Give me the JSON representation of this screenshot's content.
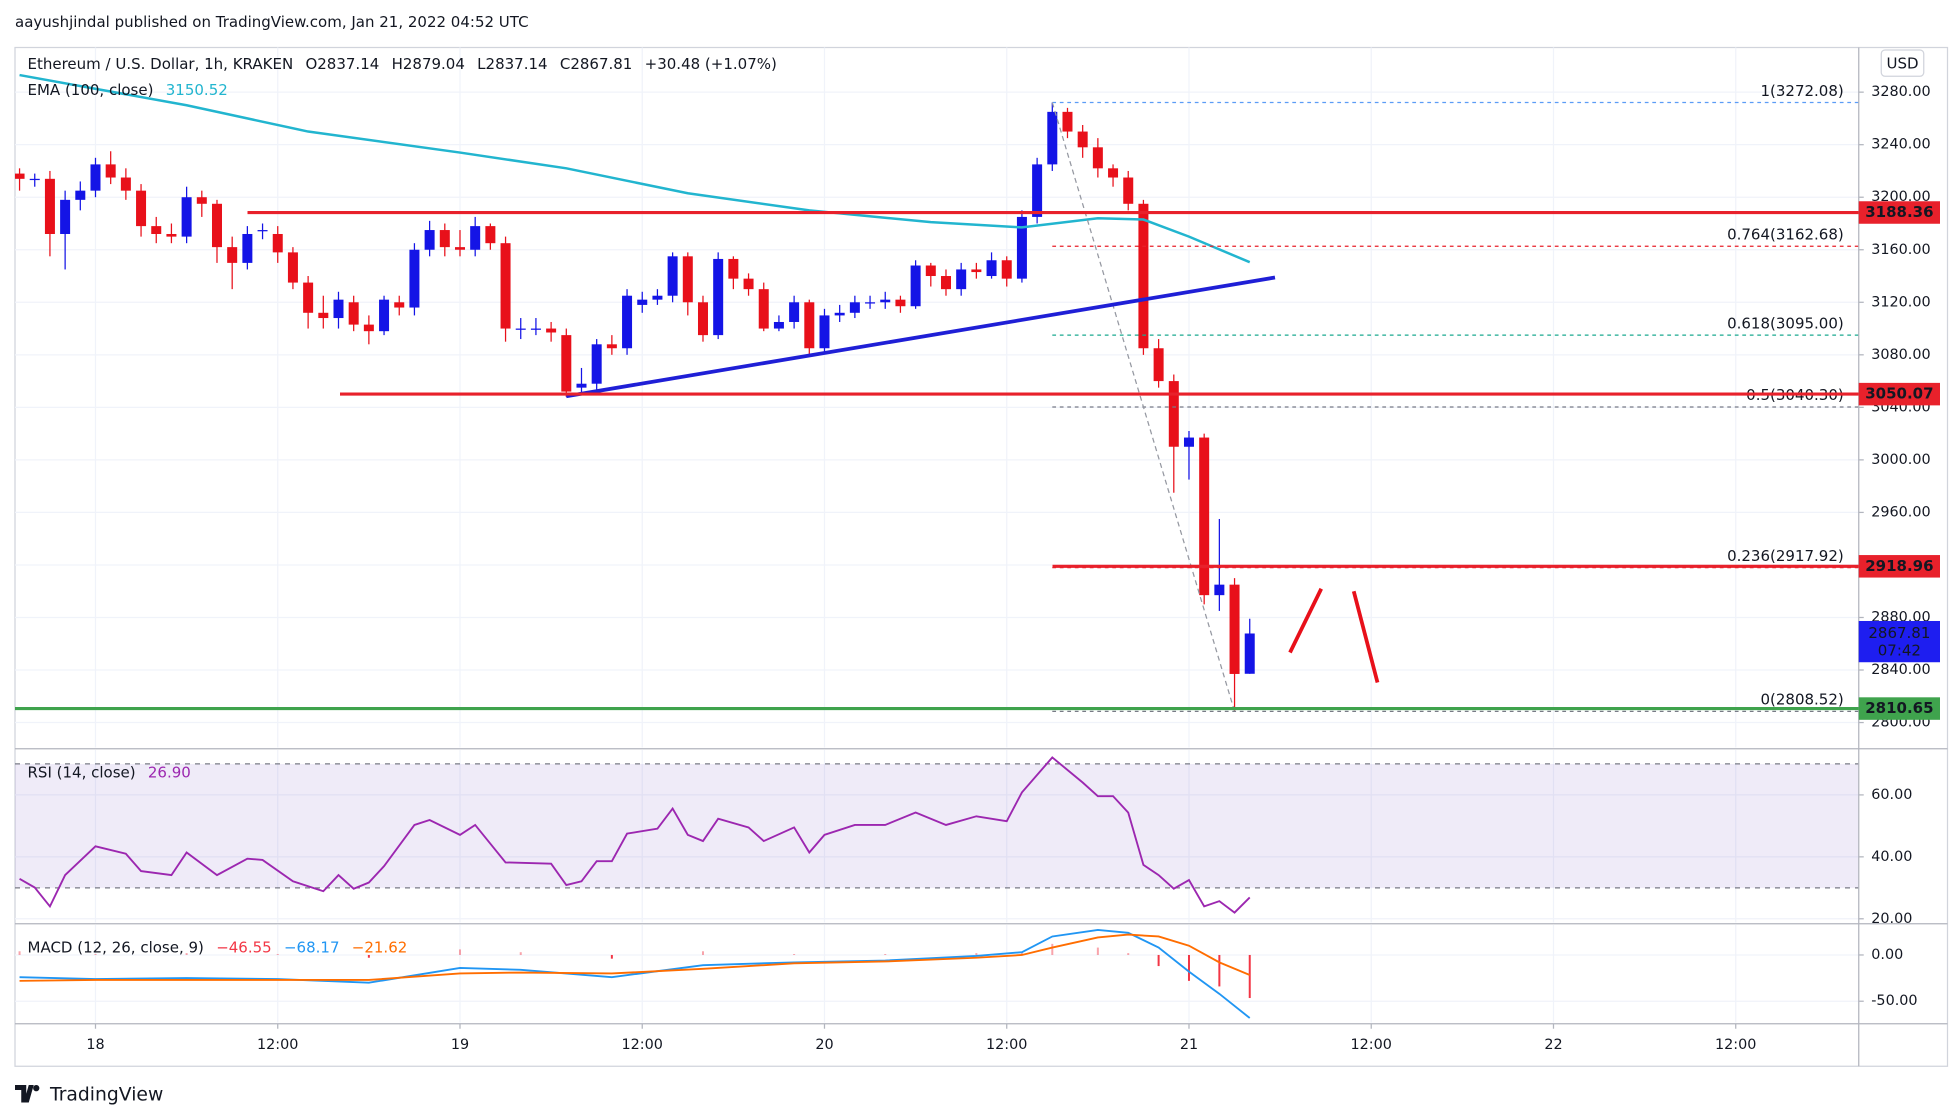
{
  "header": {
    "publisher": "aayushjindal published on TradingView.com, Jan 21, 2022 04:52 UTC"
  },
  "footer": {
    "brand": "TradingView"
  },
  "chart_data": [
    {
      "type": "candlestick",
      "symbol": "Ethereum / U.S. Dollar, 1h, KRAKEN",
      "ohlc_text": [
        "O2837.14",
        "H2879.04",
        "L2837.14",
        "C2867.81",
        "+30.48 (+1.07%)"
      ],
      "currency": "USD",
      "up_color": "#1414e6",
      "down_color": "#e8101a",
      "x": [
        -5,
        -4,
        -3,
        -2,
        -1,
        0,
        1,
        2,
        3,
        4,
        5,
        6,
        7,
        8,
        9,
        10,
        11,
        12,
        13,
        14,
        15,
        16,
        17,
        18,
        19,
        20,
        21,
        22,
        23,
        24,
        25,
        26,
        27,
        28,
        29,
        30,
        31,
        32,
        33,
        34,
        35,
        36,
        37,
        38,
        39,
        40,
        41,
        42,
        43,
        44,
        45,
        46,
        47,
        48,
        49,
        50,
        51,
        52,
        53,
        54,
        55,
        56,
        57,
        58,
        59,
        60,
        61,
        62,
        63,
        64,
        65,
        66,
        67,
        68,
        69,
        70,
        71,
        72,
        73,
        74,
        75,
        76
      ],
      "open": [
        3218,
        3214,
        3214,
        3172,
        3198,
        3205,
        3225,
        3215,
        3205,
        3178,
        3172,
        3170,
        3200,
        3195,
        3162,
        3150,
        3175,
        3172,
        3158,
        3135,
        3112,
        3108,
        3120,
        3103,
        3098,
        3120,
        3116,
        3160,
        3175,
        3162,
        3160,
        3178,
        3165,
        3100,
        3100,
        3100,
        3095,
        3055,
        3058,
        3088,
        3085,
        3118,
        3122,
        3125,
        3155,
        3120,
        3095,
        3153,
        3138,
        3130,
        3100,
        3105,
        3120,
        3085,
        3110,
        3112,
        3120,
        3120,
        3122,
        3117,
        3148,
        3140,
        3130,
        3145,
        3140,
        3152,
        3138,
        3185,
        3225,
        3265,
        3250,
        3238,
        3222,
        3215,
        3195,
        3085,
        3060,
        3010,
        3017,
        2897,
        2905,
        2837.14
      ],
      "high": [
        3222,
        3218,
        3220,
        3205,
        3212,
        3230,
        3235,
        3222,
        3210,
        3185,
        3180,
        3208,
        3205,
        3198,
        3170,
        3178,
        3180,
        3178,
        3162,
        3140,
        3125,
        3128,
        3125,
        3110,
        3125,
        3125,
        3165,
        3182,
        3180,
        3175,
        3185,
        3180,
        3170,
        3108,
        3108,
        3105,
        3100,
        3070,
        3092,
        3095,
        3130,
        3128,
        3130,
        3158,
        3158,
        3125,
        3158,
        3155,
        3142,
        3135,
        3110,
        3125,
        3122,
        3115,
        3118,
        3125,
        3125,
        3128,
        3125,
        3152,
        3150,
        3145,
        3150,
        3150,
        3158,
        3155,
        3190,
        3230,
        3272.08,
        3268,
        3255,
        3245,
        3225,
        3220,
        3198,
        3092,
        3065,
        3022,
        3020,
        2955,
        2910,
        2879.04
      ],
      "low": [
        3205,
        3208,
        3155,
        3145,
        3190,
        3200,
        3210,
        3198,
        3170,
        3165,
        3165,
        3165,
        3185,
        3150,
        3130,
        3145,
        3168,
        3150,
        3130,
        3100,
        3100,
        3100,
        3098,
        3088,
        3095,
        3110,
        3110,
        3155,
        3155,
        3155,
        3155,
        3160,
        3090,
        3092,
        3095,
        3090,
        3048,
        3050,
        3052,
        3080,
        3080,
        3112,
        3118,
        3120,
        3110,
        3090,
        3092,
        3130,
        3125,
        3098,
        3098,
        3100,
        3080,
        3082,
        3105,
        3108,
        3115,
        3115,
        3112,
        3115,
        3132,
        3125,
        3125,
        3138,
        3138,
        3132,
        3135,
        3180,
        3220,
        3245,
        3230,
        3215,
        3208,
        3190,
        3080,
        3055,
        2975,
        2985,
        2890,
        2885,
        2808.52,
        2837.14
      ],
      "close": [
        3214,
        3214,
        3172,
        3198,
        3205,
        3225,
        3215,
        3205,
        3178,
        3172,
        3170,
        3200,
        3195,
        3162,
        3150,
        3172,
        3175,
        3158,
        3135,
        3112,
        3108,
        3122,
        3103,
        3098,
        3122,
        3116,
        3160,
        3175,
        3162,
        3160,
        3178,
        3165,
        3100,
        3100,
        3100,
        3097,
        3052,
        3058,
        3088,
        3085,
        3125,
        3122,
        3125,
        3155,
        3120,
        3095,
        3153,
        3138,
        3130,
        3100,
        3105,
        3120,
        3085,
        3110,
        3112,
        3120,
        3120,
        3122,
        3117,
        3148,
        3140,
        3130,
        3145,
        3143,
        3152,
        3138,
        3185,
        3225,
        3265,
        3250,
        3238,
        3222,
        3215,
        3195,
        3085,
        3060,
        3010,
        3017,
        2897,
        2905,
        2837,
        2867.81
      ],
      "indicators": [
        {
          "name": "EMA (100, close)",
          "value_label": "3150.52",
          "color": "#22b5cf",
          "x": [
            -5,
            6,
            14,
            24,
            31,
            39,
            47,
            55,
            61,
            66,
            69,
            72,
            76
          ],
          "values": [
            3293,
            3270,
            3250,
            3234,
            3222,
            3203,
            3190,
            3181,
            3177,
            3184,
            3183,
            3170,
            3150.52
          ]
        }
      ],
      "levels": [
        {
          "value": 3188.36,
          "color": "#e8212b"
        },
        {
          "value": 3050.07,
          "color": "#e8212b"
        },
        {
          "value": 2918.96,
          "color": "#e8212b"
        },
        {
          "value": 2810.65,
          "color": "#3fa34d"
        }
      ],
      "fib_levels": [
        {
          "value": 3272.08,
          "label": "1(3272.08)",
          "color": "#5b9cf6"
        },
        {
          "value": 3162.68,
          "label": "0.764(3162.68)",
          "color": "#e8212b"
        },
        {
          "value": 3095,
          "label": "0.618(3095.00)",
          "color": "#1aa88f"
        },
        {
          "value": 3040.3,
          "label": "0.5(3040.30)",
          "color": "#787b86"
        },
        {
          "value": 2917.92,
          "label": "0.236(2917.92)",
          "color": "#e8212b"
        },
        {
          "value": 2808.52,
          "label": "0(2808.52)",
          "color": "#787b86"
        }
      ],
      "last_price": {
        "value": 2867.81,
        "countdown": "07:42",
        "color": "#1e1ef0"
      },
      "xlim": [
        -5.3,
        116.1
      ],
      "xticks": [
        {
          "value": 0,
          "label": "18"
        },
        {
          "value": 12,
          "label": "12:00"
        },
        {
          "value": 24,
          "label": "19"
        },
        {
          "value": 36,
          "label": "12:00"
        },
        {
          "value": 48,
          "label": "20"
        },
        {
          "value": 60,
          "label": "12:00"
        },
        {
          "value": 72,
          "label": "21"
        },
        {
          "value": 84,
          "label": "12:00"
        },
        {
          "value": 96,
          "label": "22"
        },
        {
          "value": 108,
          "label": "12:00"
        }
      ],
      "ylim": [
        2781,
        3314
      ],
      "yticks": [
        {
          "value": 2800,
          "label": "2800.00"
        },
        {
          "value": 2840,
          "label": "2840.00"
        },
        {
          "value": 2880,
          "label": "2880.00"
        },
        {
          "value": 2920,
          "label": "2920.00"
        },
        {
          "value": 2960,
          "label": "2960.00"
        },
        {
          "value": 3000,
          "label": "3000.00"
        },
        {
          "value": 3040,
          "label": "3040.00"
        },
        {
          "value": 3080,
          "label": "3080.00"
        },
        {
          "value": 3120,
          "label": "3120.00"
        },
        {
          "value": 3160,
          "label": "3160.00"
        },
        {
          "value": 3200,
          "label": "3200.00"
        },
        {
          "value": 3240,
          "label": "3240.00"
        },
        {
          "value": 3280,
          "label": "3280.00"
        }
      ],
      "grid": true
    },
    {
      "type": "line",
      "title": "RSI (14, close)",
      "value_label": "26.90",
      "color": "#9c27b0",
      "x": [
        -5,
        -4,
        -3,
        -2,
        0,
        2,
        3,
        5,
        6,
        8,
        10,
        11,
        13,
        15,
        16,
        17,
        18,
        19,
        21,
        22,
        24,
        25,
        27,
        30,
        31,
        32,
        33,
        34,
        35,
        37,
        38,
        39,
        40,
        41,
        43,
        44,
        46,
        47,
        48,
        50,
        52,
        54,
        56,
        58,
        60,
        61,
        63,
        65,
        66,
        67,
        68,
        69,
        70,
        71,
        72,
        73,
        74,
        75,
        76
      ],
      "values": [
        32.9,
        30.1,
        24.0,
        34.1,
        43.4,
        41.0,
        35.4,
        34.1,
        41.4,
        34.1,
        39.4,
        39.0,
        32.1,
        28.9,
        34.1,
        29.7,
        31.7,
        37.0,
        50.3,
        51.9,
        47.1,
        50.3,
        38.2,
        37.8,
        30.9,
        32.1,
        38.6,
        38.6,
        47.5,
        49.1,
        55.6,
        47.1,
        45.1,
        52.3,
        49.5,
        45.1,
        49.5,
        41.4,
        47.1,
        50.3,
        50.3,
        54.3,
        50.3,
        53.1,
        51.5,
        60.8,
        72.1,
        64.0,
        59.6,
        59.6,
        54.3,
        37.4,
        34.1,
        29.7,
        32.5,
        24.0,
        25.7,
        22.0,
        26.9
      ],
      "band": [
        30,
        70
      ],
      "band_color": "#7e57c2",
      "ylim": [
        18.8,
        74.5
      ],
      "yticks": [
        {
          "value": 20,
          "label": "20.00"
        },
        {
          "value": 40,
          "label": "40.00"
        },
        {
          "value": 60,
          "label": "60.00"
        }
      ]
    },
    {
      "type": "macd",
      "title": "MACD (12, 26, close, 9)",
      "x": [
        -5,
        0,
        6,
        12,
        18,
        24,
        28,
        34,
        40,
        46,
        52,
        58,
        61,
        63,
        66,
        68,
        70,
        72,
        74,
        76
      ],
      "series": [
        {
          "color": "#f23645",
          "value_label": "−46.55",
          "values": [
            4,
            1,
            2,
            1,
            -3,
            6,
            3,
            -4,
            4,
            1,
            1,
            2,
            3,
            12,
            8,
            2,
            -12,
            -28,
            -34,
            -46.55
          ]
        },
        {
          "color": "#2196f3",
          "value_label": "−68.17",
          "values": [
            -24,
            -26,
            -25,
            -26,
            -30,
            -14,
            -16,
            -24,
            -11,
            -8,
            -6,
            -1,
            3,
            20,
            27,
            24,
            8,
            -18,
            -42,
            -68.17
          ]
        },
        {
          "color": "#ff6d00",
          "value_label": "−21.62",
          "values": [
            -28,
            -27,
            -27,
            -27,
            -27,
            -20,
            -19,
            -20,
            -15,
            -9,
            -7,
            -3,
            0,
            8,
            19,
            22,
            20,
            10,
            -8,
            -21.62
          ]
        }
      ],
      "ylim": [
        -73,
        32.4
      ],
      "yticks": [
        {
          "value": -50,
          "label": "-50.00"
        },
        {
          "value": 0,
          "label": "0.00"
        }
      ]
    }
  ]
}
